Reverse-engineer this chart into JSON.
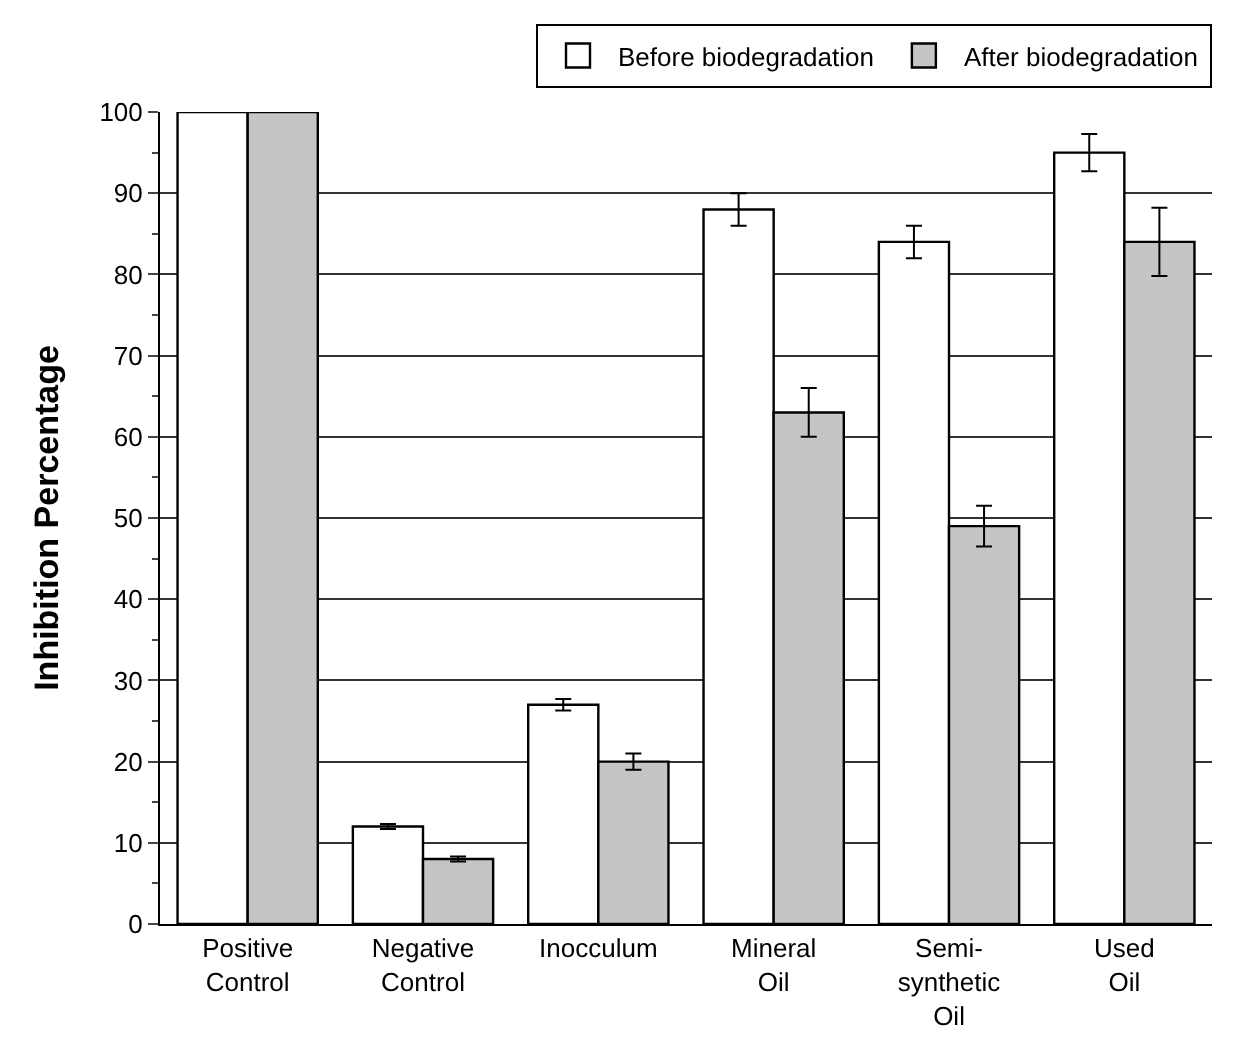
{
  "chart_data": {
    "type": "bar",
    "ylabel": "Inhibition Percentage",
    "categories": [
      "Positive\nControl",
      "Negative\nControl",
      "Inocculum",
      "Mineral\nOil",
      "Semi-\nsynthetic\nOil",
      "Used\nOil"
    ],
    "series": [
      {
        "name": "Before biodegradation",
        "color": "#ffffff",
        "values": [
          100,
          12,
          27,
          88,
          84,
          95
        ],
        "errors": [
          null,
          0.3,
          0.7,
          2,
          2,
          2.3
        ]
      },
      {
        "name": "After biodegradation",
        "color": "#c4c6c5",
        "values": [
          100,
          8,
          20,
          63,
          49,
          84
        ],
        "errors": [
          null,
          0.3,
          1,
          3,
          2.5,
          4.2
        ]
      }
    ],
    "ylim": [
      0,
      100
    ],
    "yticks": [
      0,
      10,
      20,
      30,
      40,
      50,
      60,
      70,
      80,
      90,
      100
    ],
    "grid": "y",
    "legend": "top"
  }
}
